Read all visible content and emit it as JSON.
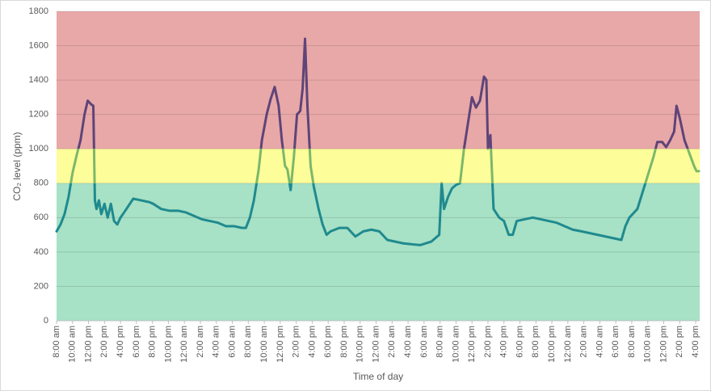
{
  "chart_data": {
    "type": "line",
    "y_label": "CO₂ level (ppm)",
    "x_label": "Time of day",
    "ylim": [
      0,
      1800
    ],
    "yticks": [
      0,
      200,
      400,
      600,
      800,
      1000,
      1200,
      1400,
      1600,
      1800
    ],
    "xlim": [
      0,
      80.5
    ],
    "xticks": [
      {
        "value": 0,
        "label": "8:00 am"
      },
      {
        "value": 2,
        "label": "10:00 am"
      },
      {
        "value": 4,
        "label": "12:00 pm"
      },
      {
        "value": 6,
        "label": "2:00 pm"
      },
      {
        "value": 8,
        "label": "4:00 pm"
      },
      {
        "value": 10,
        "label": "6:00 pm"
      },
      {
        "value": 12,
        "label": "8:00 pm"
      },
      {
        "value": 14,
        "label": "10:00 pm"
      },
      {
        "value": 16,
        "label": "12:00 am"
      },
      {
        "value": 18,
        "label": "2:00 am"
      },
      {
        "value": 20,
        "label": "4:00 am"
      },
      {
        "value": 22,
        "label": "6:00 am"
      },
      {
        "value": 24,
        "label": "8:00 am"
      },
      {
        "value": 26,
        "label": "10:00 am"
      },
      {
        "value": 28,
        "label": "12:00 pm"
      },
      {
        "value": 30,
        "label": "2:00 pm"
      },
      {
        "value": 32,
        "label": "4:00 pm"
      },
      {
        "value": 34,
        "label": "6:00 pm"
      },
      {
        "value": 36,
        "label": "8:00 pm"
      },
      {
        "value": 38,
        "label": "10:00 pm"
      },
      {
        "value": 40,
        "label": "12:00 am"
      },
      {
        "value": 42,
        "label": "2:00 am"
      },
      {
        "value": 44,
        "label": "4:00 am"
      },
      {
        "value": 46,
        "label": "6:00 am"
      },
      {
        "value": 48,
        "label": "8:00 am"
      },
      {
        "value": 50,
        "label": "10:00 am"
      },
      {
        "value": 52,
        "label": "12:00 pm"
      },
      {
        "value": 54,
        "label": "2:00 pm"
      },
      {
        "value": 56,
        "label": "4:00 pm"
      },
      {
        "value": 58,
        "label": "6:00 pm"
      },
      {
        "value": 60,
        "label": "8:00 pm"
      },
      {
        "value": 62,
        "label": "10:00 pm"
      },
      {
        "value": 64,
        "label": "12:00 am"
      },
      {
        "value": 66,
        "label": "2:00 am"
      },
      {
        "value": 68,
        "label": "4:00 am"
      },
      {
        "value": 70,
        "label": "6:00 am"
      },
      {
        "value": 72,
        "label": "8:00 am"
      },
      {
        "value": 74,
        "label": "10:00 am"
      },
      {
        "value": 76,
        "label": "12:00 pm"
      },
      {
        "value": 78,
        "label": "2:00 pm"
      },
      {
        "value": 80,
        "label": "4:00 pm"
      }
    ],
    "bands": [
      {
        "from": 0,
        "to": 800,
        "color": "#a7e1c6",
        "line_color": "#1f8a8e"
      },
      {
        "from": 800,
        "to": 1000,
        "color": "#fdfd99",
        "line_color": "#7cb86a"
      },
      {
        "from": 1000,
        "to": 1800,
        "color": "#e8a8a8",
        "line_color": "#5e4478"
      }
    ],
    "x": [
      0,
      0.5,
      1,
      1.5,
      2,
      2.5,
      3,
      3.5,
      3.9,
      4.3,
      4.6,
      4.8,
      5,
      5.3,
      5.6,
      6,
      6.4,
      6.8,
      7.2,
      7.6,
      8,
      8.6,
      9.6,
      10.6,
      11.6,
      12.1,
      13.1,
      14.1,
      15.2,
      16.2,
      17.2,
      18.2,
      19.2,
      20.2,
      21.2,
      22.2,
      23.2,
      23.7,
      24.2,
      24.7,
      25.3,
      25.7,
      26.3,
      26.8,
      27.3,
      27.8,
      28.2,
      28.6,
      28.9,
      29.3,
      29.7,
      30.1,
      30.5,
      30.8,
      31.1,
      31.4,
      31.8,
      32.2,
      32.8,
      33.3,
      33.8,
      34.3,
      35.4,
      36.4,
      37.4,
      38.4,
      39.4,
      40.4,
      41.4,
      42.4,
      43.4,
      44.4,
      45.5,
      46.9,
      47.9,
      48.2,
      48.5,
      49,
      49.5,
      50,
      50.5,
      51,
      51.5,
      52,
      52.5,
      53,
      53.5,
      53.8,
      54,
      54.3,
      54.7,
      55.4,
      56,
      56.6,
      57.1,
      57.6,
      58.6,
      59.6,
      60.6,
      61.6,
      62.6,
      63.6,
      64.6,
      65.7,
      66.7,
      67.7,
      68.7,
      69.7,
      70.7,
      71.2,
      71.7,
      72.7,
      73.7,
      74.7,
      75.2,
      75.8,
      76.3,
      76.8,
      77.3,
      77.6,
      78,
      78.6,
      79,
      79.4,
      79.8,
      80.1,
      80.4
    ],
    "values": [
      520,
      560,
      620,
      720,
      860,
      960,
      1050,
      1200,
      1280,
      1260,
      1250,
      700,
      650,
      700,
      620,
      680,
      600,
      680,
      580,
      560,
      600,
      640,
      710,
      700,
      690,
      680,
      650,
      640,
      640,
      630,
      610,
      590,
      580,
      570,
      550,
      550,
      540,
      540,
      600,
      700,
      880,
      1050,
      1200,
      1290,
      1360,
      1250,
      1050,
      900,
      880,
      760,
      950,
      1200,
      1220,
      1350,
      1640,
      1250,
      900,
      780,
      650,
      560,
      500,
      520,
      540,
      540,
      490,
      520,
      530,
      520,
      470,
      460,
      450,
      445,
      440,
      460,
      500,
      800,
      650,
      720,
      770,
      790,
      800,
      1000,
      1150,
      1300,
      1240,
      1280,
      1420,
      1400,
      1000,
      1080,
      650,
      600,
      580,
      500,
      500,
      580,
      590,
      600,
      590,
      580,
      570,
      550,
      530,
      520,
      510,
      500,
      490,
      480,
      470,
      550,
      600,
      650,
      800,
      950,
      1040,
      1040,
      1010,
      1050,
      1100,
      1250,
      1180,
      1050,
      1000,
      950,
      900,
      870,
      870
    ]
  }
}
